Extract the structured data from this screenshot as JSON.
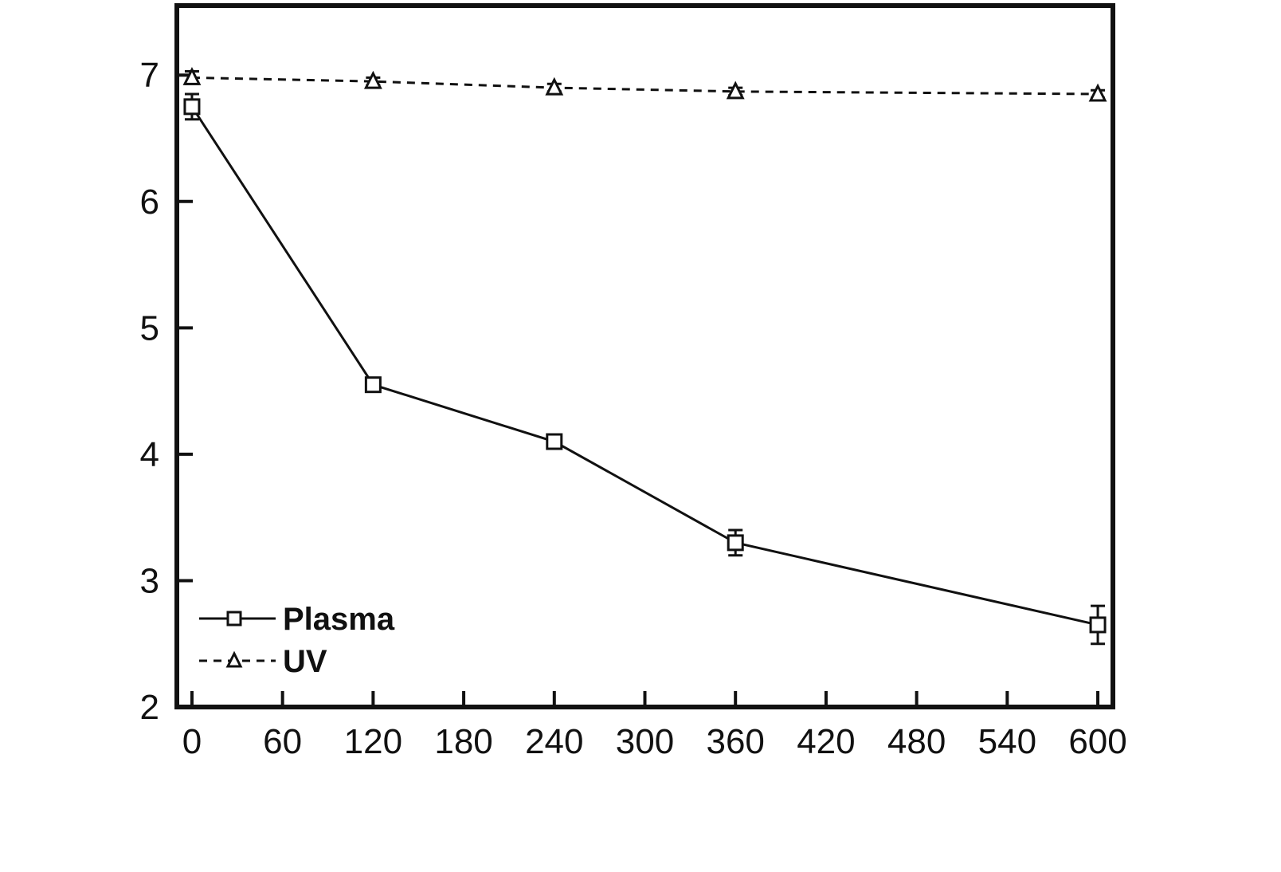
{
  "chart_data": {
    "type": "line",
    "x": [
      0,
      120,
      240,
      360,
      600
    ],
    "xticks": [
      0,
      60,
      120,
      180,
      240,
      300,
      360,
      420,
      480,
      540,
      600
    ],
    "yticks": [
      2,
      3,
      4,
      5,
      6,
      7
    ],
    "xlim": [
      -10,
      610
    ],
    "ylim": [
      2,
      7.55
    ],
    "grid": false,
    "legend_position": "bottom-left",
    "series": [
      {
        "name": "Plasma",
        "values": [
          6.75,
          4.55,
          4.1,
          3.3,
          2.65
        ],
        "errors": [
          0.1,
          0.05,
          0.05,
          0.1,
          0.15
        ],
        "marker": "square",
        "line_style": "solid",
        "color": "#111111"
      },
      {
        "name": "UV",
        "values": [
          6.98,
          6.95,
          6.9,
          6.87,
          6.85
        ],
        "errors": [
          0.05,
          0.03,
          0.03,
          0.03,
          0.03
        ],
        "marker": "triangle",
        "line_style": "dashed",
        "color": "#111111"
      }
    ]
  }
}
